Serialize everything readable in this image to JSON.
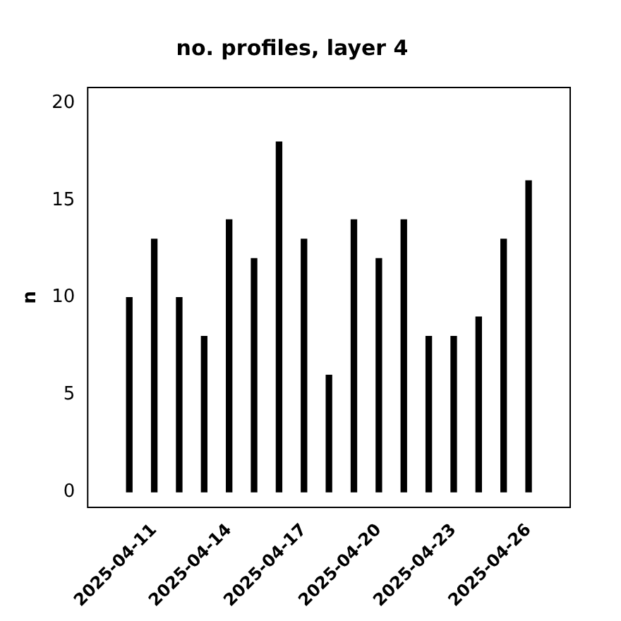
{
  "chart_data": {
    "type": "bar",
    "title": "no. profiles, layer 4",
    "ylabel": "n",
    "x": [
      "2025-04-10",
      "2025-04-11",
      "2025-04-12",
      "2025-04-13",
      "2025-04-14",
      "2025-04-15",
      "2025-04-16",
      "2025-04-17",
      "2025-04-18",
      "2025-04-19",
      "2025-04-20",
      "2025-04-21",
      "2025-04-22",
      "2025-04-23",
      "2025-04-24",
      "2025-04-25",
      "2025-04-26"
    ],
    "values": [
      10,
      13,
      10,
      8,
      14,
      12,
      18,
      13,
      6,
      14,
      12,
      14,
      8,
      8,
      9,
      13,
      16
    ],
    "color": "#000000",
    "xlim": [
      "2025-04-08T08:00",
      "2025-04-27T16:00"
    ],
    "xticks": [
      "2025-04-11",
      "2025-04-14",
      "2025-04-17",
      "2025-04-20",
      "2025-04-23",
      "2025-04-26"
    ],
    "ylim": [
      -0.8,
      20.8
    ],
    "yticks": [
      0,
      5,
      10,
      15,
      20
    ],
    "grid": false,
    "legend": false
  }
}
